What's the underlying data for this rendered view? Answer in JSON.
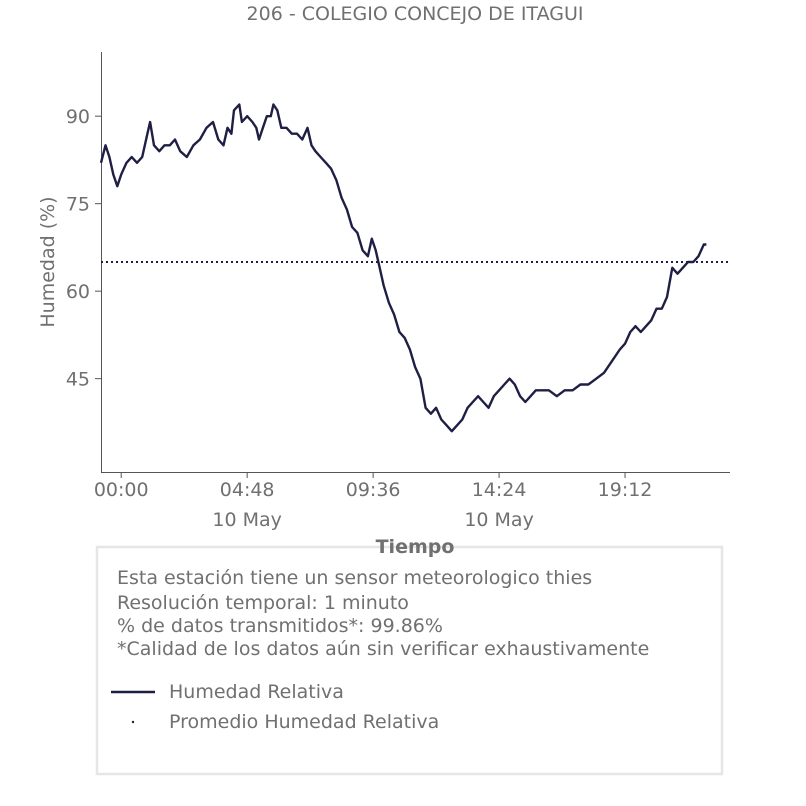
{
  "chart_data": {
    "type": "line",
    "title": "206 - COLEGIO CONCEJO DE ITAGUI",
    "xlabel": "Tiempo",
    "ylabel": "Humedad (%)",
    "ylim": [
      29,
      101
    ],
    "xlim_hours": [
      -0.77,
      23.2
    ],
    "y_ticks": [
      45,
      60,
      75,
      90
    ],
    "x_ticks": [
      {
        "hour": 0.0,
        "label": "00:00",
        "date": ""
      },
      {
        "hour": 4.8,
        "label": "04:48",
        "date": "10 May"
      },
      {
        "hour": 9.6,
        "label": "09:36",
        "date": ""
      },
      {
        "hour": 14.4,
        "label": "14:24",
        "date": "10 May"
      },
      {
        "hour": 19.2,
        "label": "19:12",
        "date": ""
      }
    ],
    "grid": false,
    "series": [
      {
        "name": "Humedad Relativa",
        "color": "#1f1f45",
        "style": "solid",
        "points": [
          [
            -0.77,
            82
          ],
          [
            -0.6,
            85
          ],
          [
            -0.45,
            83
          ],
          [
            -0.3,
            80
          ],
          [
            -0.15,
            78
          ],
          [
            0.0,
            80
          ],
          [
            0.2,
            82
          ],
          [
            0.4,
            83
          ],
          [
            0.6,
            82
          ],
          [
            0.8,
            83
          ],
          [
            1.0,
            87
          ],
          [
            1.1,
            89
          ],
          [
            1.25,
            85
          ],
          [
            1.45,
            84
          ],
          [
            1.65,
            85
          ],
          [
            1.85,
            85
          ],
          [
            2.05,
            86
          ],
          [
            2.25,
            84
          ],
          [
            2.5,
            83
          ],
          [
            2.75,
            85
          ],
          [
            3.0,
            86
          ],
          [
            3.25,
            88
          ],
          [
            3.5,
            89
          ],
          [
            3.7,
            86
          ],
          [
            3.9,
            85
          ],
          [
            4.05,
            88
          ],
          [
            4.2,
            87
          ],
          [
            4.3,
            91
          ],
          [
            4.5,
            92
          ],
          [
            4.6,
            89
          ],
          [
            4.8,
            90
          ],
          [
            5.0,
            89
          ],
          [
            5.15,
            88
          ],
          [
            5.25,
            86
          ],
          [
            5.4,
            88
          ],
          [
            5.55,
            90
          ],
          [
            5.7,
            90
          ],
          [
            5.8,
            92
          ],
          [
            5.95,
            91
          ],
          [
            6.1,
            88
          ],
          [
            6.3,
            88
          ],
          [
            6.5,
            87
          ],
          [
            6.7,
            87
          ],
          [
            6.9,
            86
          ],
          [
            7.1,
            88
          ],
          [
            7.25,
            85
          ],
          [
            7.4,
            84
          ],
          [
            7.6,
            83
          ],
          [
            7.8,
            82
          ],
          [
            8.0,
            81
          ],
          [
            8.2,
            79
          ],
          [
            8.4,
            76
          ],
          [
            8.6,
            74
          ],
          [
            8.8,
            71
          ],
          [
            9.0,
            70
          ],
          [
            9.2,
            67
          ],
          [
            9.4,
            66
          ],
          [
            9.55,
            69
          ],
          [
            9.7,
            67
          ],
          [
            9.85,
            64
          ],
          [
            10.0,
            61
          ],
          [
            10.2,
            58
          ],
          [
            10.4,
            56
          ],
          [
            10.6,
            53
          ],
          [
            10.8,
            52
          ],
          [
            11.0,
            50
          ],
          [
            11.2,
            47
          ],
          [
            11.4,
            45
          ],
          [
            11.6,
            40
          ],
          [
            11.8,
            39
          ],
          [
            12.0,
            40
          ],
          [
            12.2,
            38
          ],
          [
            12.4,
            37
          ],
          [
            12.6,
            36
          ],
          [
            12.8,
            37
          ],
          [
            13.0,
            38
          ],
          [
            13.2,
            40
          ],
          [
            13.4,
            41
          ],
          [
            13.6,
            42
          ],
          [
            13.8,
            41
          ],
          [
            14.0,
            40
          ],
          [
            14.2,
            42
          ],
          [
            14.4,
            43
          ],
          [
            14.6,
            44
          ],
          [
            14.8,
            45
          ],
          [
            15.0,
            44
          ],
          [
            15.2,
            42
          ],
          [
            15.4,
            41
          ],
          [
            15.6,
            42
          ],
          [
            15.8,
            43
          ],
          [
            16.0,
            43
          ],
          [
            16.3,
            43
          ],
          [
            16.6,
            42
          ],
          [
            16.9,
            43
          ],
          [
            17.2,
            43
          ],
          [
            17.5,
            44
          ],
          [
            17.8,
            44
          ],
          [
            18.1,
            45
          ],
          [
            18.4,
            46
          ],
          [
            18.7,
            48
          ],
          [
            19.0,
            50
          ],
          [
            19.2,
            51
          ],
          [
            19.4,
            53
          ],
          [
            19.6,
            54
          ],
          [
            19.8,
            53
          ],
          [
            20.0,
            54
          ],
          [
            20.2,
            55
          ],
          [
            20.4,
            57
          ],
          [
            20.6,
            57
          ],
          [
            20.8,
            59
          ],
          [
            21.0,
            64
          ],
          [
            21.2,
            63
          ],
          [
            21.4,
            64
          ],
          [
            21.6,
            65
          ],
          [
            21.8,
            65
          ],
          [
            22.0,
            66
          ],
          [
            22.2,
            68
          ],
          [
            22.3,
            68
          ]
        ]
      },
      {
        "name": "Promedio Humedad Relativa",
        "color": "#1f1f45",
        "style": "dotted",
        "value": 65
      }
    ]
  },
  "info_box": {
    "line1": "Esta estación tiene un sensor meteorologico thies",
    "line2": "Resolución temporal: 1 minuto",
    "line3": "% de datos transmitidos*: 99.86%",
    "line4": "*Calidad de los datos aún sin verificar exhaustivamente"
  },
  "legend": {
    "items": [
      {
        "label": "Humedad Relativa"
      },
      {
        "label": "Promedio Humedad Relativa"
      }
    ]
  },
  "colors": {
    "line": "#1f1f45",
    "text": "#707070",
    "box_border": "#e6e6e6"
  }
}
